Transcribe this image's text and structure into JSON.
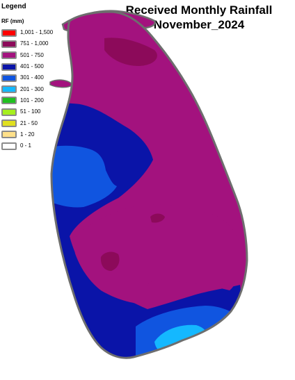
{
  "title": {
    "line1": "Received Monthly Rainfall",
    "line2": "November_2024"
  },
  "legend": {
    "heading": "Legend",
    "unit": "RF (mm)",
    "classes": [
      {
        "label": "1,001 - 1,500",
        "color": "#ff0000"
      },
      {
        "label": "751 - 1,000",
        "color": "#8c0a5a"
      },
      {
        "label": "501 - 750",
        "color": "#a3127e"
      },
      {
        "label": "401 - 500",
        "color": "#0a14a8"
      },
      {
        "label": "301 - 400",
        "color": "#1055e0"
      },
      {
        "label": "201 - 300",
        "color": "#14b8ff"
      },
      {
        "label": "101 - 200",
        "color": "#20c020"
      },
      {
        "label": "51 - 100",
        "color": "#a6ef1e"
      },
      {
        "label": "21 - 50",
        "color": "#e0e020"
      },
      {
        "label": "1 - 20",
        "color": "#ffe08a"
      },
      {
        "label": "0 - 1",
        "color": "#ffffff"
      }
    ]
  },
  "map": {
    "region": "Sri Lanka",
    "zones": [
      {
        "rainfall_class": "501 - 750",
        "color": "#a3127e",
        "area": "north, east, central and south-central"
      },
      {
        "rainfall_class": "751 - 1,000",
        "color": "#8c0a5a",
        "area": "northern peninsula and two central patches"
      },
      {
        "rainfall_class": "401 - 500",
        "color": "#0a14a8",
        "area": "western coastal belt and south"
      },
      {
        "rainfall_class": "301 - 400",
        "color": "#1055e0",
        "area": "north-west inland and southern lowlands"
      },
      {
        "rainfall_class": "201 - 300",
        "color": "#14b8ff",
        "area": "south coast"
      }
    ]
  }
}
